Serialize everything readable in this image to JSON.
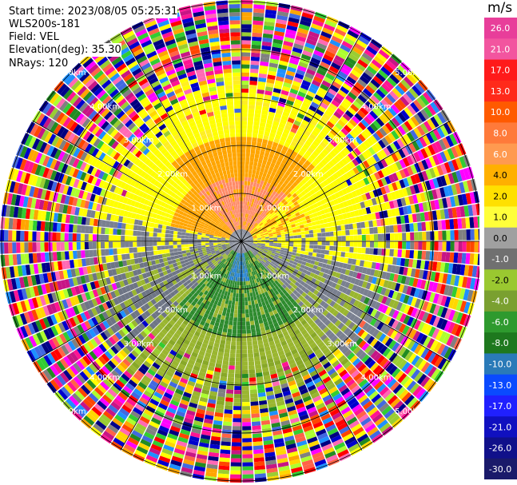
{
  "header": {
    "start_time": "Start time: 2023/08/05 05:25:31",
    "instrument": "WLS200s-181",
    "field": "Field: VEL",
    "elevation": "Elevation(deg): 35.30",
    "nrays": "NRays: 120"
  },
  "colorbar": {
    "unit": "m/s",
    "ticks": [
      "26.0",
      "21.0",
      "17.0",
      "13.0",
      "10.0",
      "8.0",
      "6.0",
      "4.0",
      "2.0",
      "1.0",
      "0.0",
      "-1.0",
      "-2.0",
      "-4.0",
      "-6.0",
      "-8.0",
      "-10.0",
      "-13.0",
      "-17.0",
      "-21.0",
      "-26.0",
      "-30.0"
    ],
    "colors": [
      "#e83e9a",
      "#f2559f",
      "#ff1a1a",
      "#ff2a1a",
      "#ff5a00",
      "#ff7a3a",
      "#ff9a50",
      "#ffb000",
      "#ffe000",
      "#ffff3a",
      "#a0a0a0",
      "#707070",
      "#9ac830",
      "#7aa030",
      "#2e9a2e",
      "#1e781e",
      "#2a7ab8",
      "#0a4aff",
      "#2020ff",
      "#1010c0",
      "#10108a",
      "#1a1a6a"
    ]
  },
  "chart_data": {
    "type": "heatmap",
    "title": "Field: VEL",
    "projection": "polar PPI",
    "field": "VEL",
    "unit": "m/s",
    "nrays": 120,
    "elevation_deg": 35.3,
    "range_ring_labels": [
      "1.00km",
      "2.00km",
      "3.00km",
      "4.00km",
      "5.00km"
    ],
    "colorbar_range": [
      -30.0,
      26.0
    ]
  }
}
